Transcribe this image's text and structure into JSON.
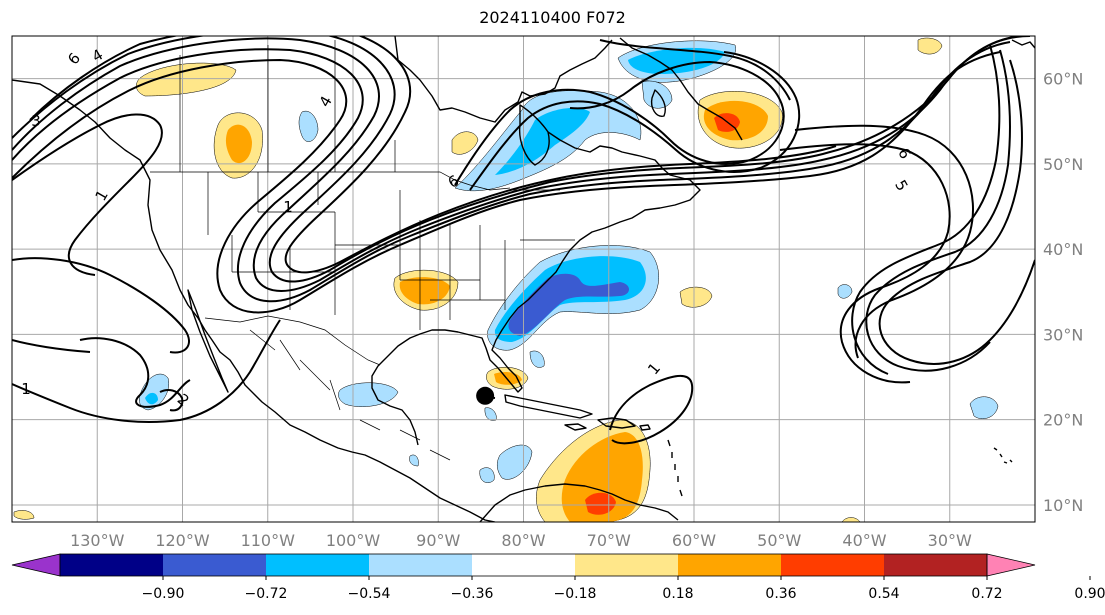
{
  "title": "2024110400 F072",
  "map": {
    "lon_range": [
      -140,
      -20
    ],
    "lat_range": [
      8,
      65
    ],
    "lon_labels": [
      "130°W",
      "120°W",
      "110°W",
      "100°W",
      "90°W",
      "80°W",
      "70°W",
      "60°W",
      "50°W",
      "40°W",
      "30°W"
    ],
    "lon_values": [
      -130,
      -120,
      -110,
      -100,
      -90,
      -80,
      -70,
      -60,
      -50,
      -40,
      -30
    ],
    "lat_labels": [
      "60°N",
      "50°N",
      "40°N",
      "30°N",
      "20°N",
      "10°N"
    ],
    "lat_values": [
      60,
      50,
      40,
      30,
      20,
      10
    ],
    "contour_labels": [
      "6",
      "4",
      "3",
      "4",
      "1",
      "1",
      "6",
      "5",
      "2",
      "1",
      "1",
      "6"
    ],
    "marker": {
      "lon": -84.5,
      "lat": 22.8
    }
  },
  "colorbar": {
    "ticks": [
      "−0.90",
      "−0.72",
      "−0.54",
      "−0.36",
      "−0.18",
      "0.18",
      "0.36",
      "0.54",
      "0.72",
      "0.90"
    ],
    "colors": [
      "#9a33cc",
      "#000087",
      "#3a5bd1",
      "#00bfff",
      "#abdfff",
      "#ffffff",
      "#ffe78a",
      "#ffa500",
      "#ff3d00",
      "#b22222",
      "#ff82b4"
    ]
  }
}
